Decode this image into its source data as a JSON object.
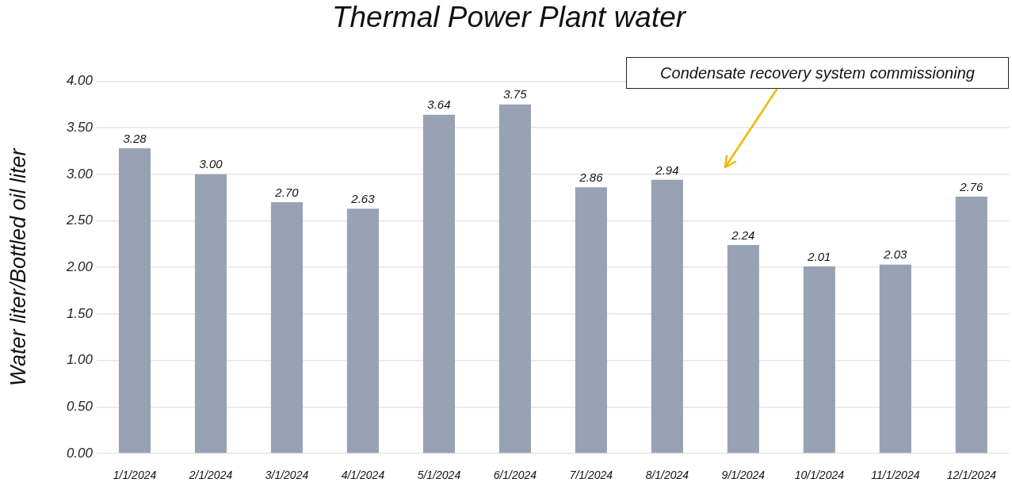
{
  "chart_data": {
    "type": "bar",
    "title": "Thermal Power Plant water",
    "ylabel": "Water liter/Bottled oil liter",
    "categories": [
      "1/1/2024",
      "2/1/2024",
      "3/1/2024",
      "4/1/2024",
      "5/1/2024",
      "6/1/2024",
      "7/1/2024",
      "8/1/2024",
      "9/1/2024",
      "10/1/2024",
      "11/1/2024",
      "12/1/2024"
    ],
    "values": [
      3.28,
      3.0,
      2.7,
      2.63,
      3.64,
      3.75,
      2.86,
      2.94,
      2.24,
      2.01,
      2.03,
      2.76
    ],
    "value_labels": [
      "3.28",
      "3.00",
      "2.70",
      "2.63",
      "3.64",
      "3.75",
      "2.86",
      "2.94",
      "2.24",
      "2.01",
      "2.03",
      "2.76"
    ],
    "color": "#97a3b4",
    "ylim": [
      0,
      4
    ],
    "yticks": [
      {
        "value": 0,
        "label": "0.00"
      },
      {
        "value": 0.5,
        "label": "0.50"
      },
      {
        "value": 1,
        "label": "1.00"
      },
      {
        "value": 1.5,
        "label": "1.50"
      },
      {
        "value": 2,
        "label": "2.00"
      },
      {
        "value": 2.5,
        "label": "2.50"
      },
      {
        "value": 3,
        "label": "3.00"
      },
      {
        "value": 3.5,
        "label": "3.50"
      },
      {
        "value": 4,
        "label": "4.00"
      }
    ],
    "grid": "y",
    "annotations": [
      "Condensate recovery system commissioning"
    ]
  }
}
